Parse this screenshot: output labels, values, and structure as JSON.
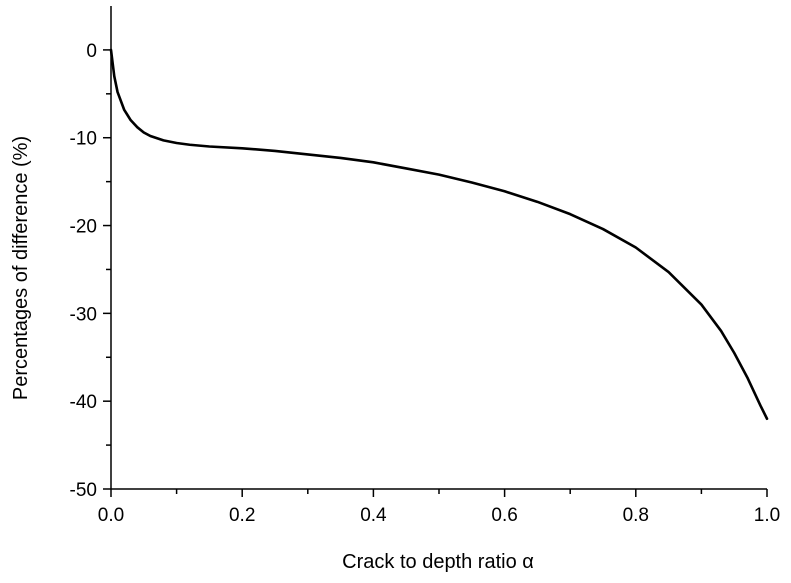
{
  "chart_data": {
    "type": "line",
    "title": "",
    "xlabel": "Crack to depth ratio α",
    "ylabel": "Percentages of difference (%)",
    "xlim": [
      0.0,
      1.0
    ],
    "ylim": [
      -50,
      5
    ],
    "x_ticks": [
      0.0,
      0.2,
      0.4,
      0.6,
      0.8,
      1.0
    ],
    "x_tick_labels": [
      "0.0",
      "0.2",
      "0.4",
      "0.6",
      "0.8",
      "1.0"
    ],
    "x_minor_step": 0.1,
    "y_ticks": [
      0,
      -10,
      -20,
      -30,
      -40,
      -50
    ],
    "y_tick_labels": [
      "0",
      "-10",
      "-20",
      "-30",
      "-40",
      "-50"
    ],
    "y_minor_step": 5,
    "grid": false,
    "legend": "none",
    "line_color": "#000000",
    "series": [
      {
        "x": [
          0.0,
          0.005,
          0.01,
          0.02,
          0.03,
          0.04,
          0.05,
          0.06,
          0.08,
          0.1,
          0.12,
          0.15,
          0.2,
          0.25,
          0.3,
          0.35,
          0.4,
          0.45,
          0.5,
          0.55,
          0.6,
          0.65,
          0.7,
          0.75,
          0.8,
          0.85,
          0.9,
          0.93,
          0.95,
          0.97,
          0.99,
          1.0
        ],
        "y": [
          0.0,
          -3.0,
          -4.8,
          -6.8,
          -8.0,
          -8.8,
          -9.4,
          -9.8,
          -10.3,
          -10.6,
          -10.8,
          -11.0,
          -11.2,
          -11.5,
          -11.9,
          -12.3,
          -12.8,
          -13.5,
          -14.2,
          -15.1,
          -16.1,
          -17.3,
          -18.7,
          -20.4,
          -22.5,
          -25.3,
          -29.0,
          -32.0,
          -34.5,
          -37.3,
          -40.5,
          -42.0
        ]
      }
    ]
  }
}
